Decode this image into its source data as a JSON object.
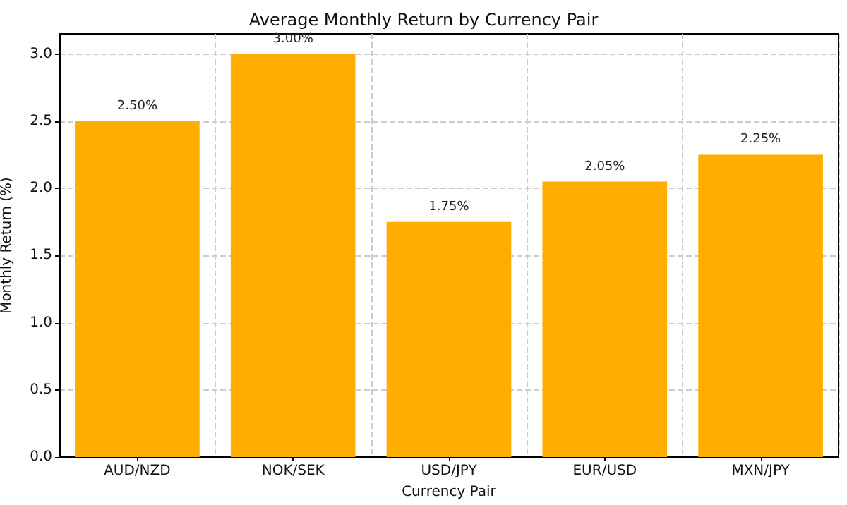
{
  "chart_data": {
    "type": "bar",
    "title": "Average Monthly Return by Currency Pair",
    "xlabel": "Currency Pair",
    "ylabel": "Monthly Return (%)",
    "categories": [
      "AUD/NZD",
      "NOK/SEK",
      "USD/JPY",
      "EUR/USD",
      "MXN/JPY"
    ],
    "values": [
      2.5,
      3.0,
      1.75,
      2.05,
      2.25
    ],
    "value_labels": [
      "2.50%",
      "3.00%",
      "1.75%",
      "2.05%",
      "2.25%"
    ],
    "color": "#ffae00",
    "ylim": [
      0,
      3.15
    ],
    "yticks": [
      {
        "value": 0,
        "label": "0.0"
      },
      {
        "value": 0.5,
        "label": "0.5"
      },
      {
        "value": 1,
        "label": "1.0"
      },
      {
        "value": 1.5,
        "label": "1.5"
      },
      {
        "value": 2,
        "label": "2.0"
      },
      {
        "value": 2.5,
        "label": "2.5"
      },
      {
        "value": 3,
        "label": "3.0"
      }
    ],
    "grid": true
  }
}
